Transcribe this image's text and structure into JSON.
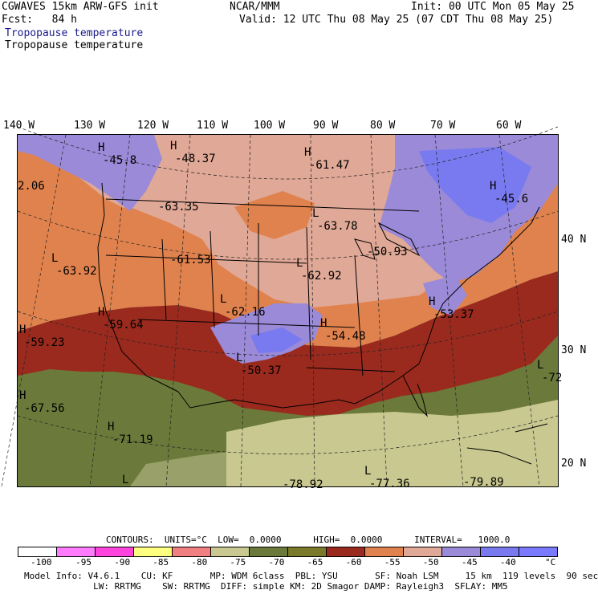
{
  "header": {
    "model_line": "CGWAVES 15km ARW-GFS init",
    "fcst_line": "Fcst:   84 h",
    "org": "NCAR/MMM",
    "init_line": "Init: 00 UTC Mon 05 May 25",
    "valid_line": "Valid: 12 UTC Thu 08 May 25 (07 CDT Thu 08 May 25)",
    "field_label_1": "Tropopause temperature",
    "field_label_2": "Tropopause temperature",
    "field_label_1_color": "#1a1a8c"
  },
  "map": {
    "longitude_labels": [
      "140 W",
      "130 W",
      "120 W",
      "110 W",
      "100 W",
      "90 W",
      "80 W",
      "70 W",
      "60 W"
    ],
    "latitude_labels": [
      "40 N",
      "30 N",
      "20 N"
    ],
    "annotations": [
      {
        "mark": "H",
        "value": "-45.8"
      },
      {
        "mark": "H",
        "value": "-48.37"
      },
      {
        "mark": "H",
        "value": "-61.47"
      },
      {
        "mark": "",
        "value": "2.06"
      },
      {
        "mark": "",
        "value": "-63.35"
      },
      {
        "mark": "L",
        "value": "-63.78"
      },
      {
        "mark": "H",
        "value": "-45.6"
      },
      {
        "mark": "L",
        "value": "-63.92"
      },
      {
        "mark": "",
        "value": "-61.53"
      },
      {
        "mark": "L",
        "value": "-62.92"
      },
      {
        "mark": "",
        "value": "-50.93"
      },
      {
        "mark": "L",
        "value": "-62.16"
      },
      {
        "mark": "H",
        "value": "-59.23"
      },
      {
        "mark": "H",
        "value": "-59.64"
      },
      {
        "mark": "H",
        "value": "-54.48"
      },
      {
        "mark": "H",
        "value": "-53.37"
      },
      {
        "mark": "L",
        "value": "-50.37"
      },
      {
        "mark": "L",
        "value": "-72"
      },
      {
        "mark": "H",
        "value": "-67.56"
      },
      {
        "mark": "H",
        "value": "-71.19"
      },
      {
        "mark": "L",
        "value": ""
      },
      {
        "mark": "",
        "value": "-78.92"
      },
      {
        "mark": "L",
        "value": "-77.36"
      },
      {
        "mark": "",
        "value": "-79.89"
      }
    ]
  },
  "contours_line": "CONTOURS:  UNITS=°C  LOW=  0.0000      HIGH=  0.0000      INTERVAL=   1000.0",
  "legend": {
    "colors": [
      "#ffffff",
      "#ff7cff",
      "#ff44dd",
      "#ffff80",
      "#f08080",
      "#c8c890",
      "#6b7a3a",
      "#7a7a2a",
      "#9a2a1e",
      "#e0824e",
      "#e0a896",
      "#9a8ad8",
      "#7a7af0",
      "#7a7aff"
    ],
    "ticks": [
      "-100",
      "-95",
      "-90",
      "-85",
      "-80",
      "-75",
      "-70",
      "-65",
      "-60",
      "-55",
      "-50",
      "-45",
      "-40",
      "°C"
    ]
  },
  "footer": {
    "line1": "Model Info: V4.6.1    CU: KF       MP: WDM 6class  PBL: YSU       SF: Noah LSM     15 km  119 levels  90 sec",
    "line2": "             LW: RRTMG    SW: RRTMG  DIFF: simple KM: 2D Smagor DAMP: Rayleigh3  SFLAY: MM5"
  }
}
